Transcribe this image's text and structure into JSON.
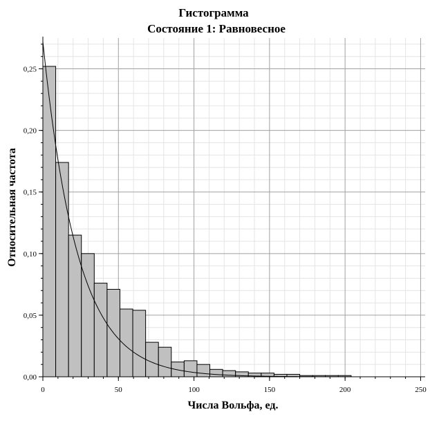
{
  "chart_data": {
    "type": "bar",
    "title": "Гистограмма",
    "subtitle": "Состояние 1: Равновесное",
    "xlabel": "Числа Вольфа, ед.",
    "ylabel": "Относительная частота",
    "xlim": [
      0,
      253
    ],
    "ylim": [
      0,
      0.275
    ],
    "x_ticks": [
      0,
      50,
      100,
      150,
      200,
      250
    ],
    "x_tick_labels": [
      "0",
      "50",
      "100",
      "150",
      "200",
      "250"
    ],
    "y_ticks": [
      0,
      0.05,
      0.1,
      0.15,
      0.2,
      0.25
    ],
    "y_tick_labels": [
      "0,00",
      "0,05",
      "0,10",
      "0,15",
      "0,20",
      "0,25"
    ],
    "grid": true,
    "bin_width": 8.5,
    "bin_starts": [
      0,
      8.5,
      17,
      25.5,
      34,
      42.5,
      51,
      59.5,
      68,
      76.5,
      85,
      93.5,
      102,
      110.5,
      119,
      127.5,
      136,
      144.5,
      153,
      161.5,
      170,
      178.5,
      187,
      195.5
    ],
    "values": [
      0.252,
      0.174,
      0.115,
      0.1,
      0.076,
      0.071,
      0.055,
      0.054,
      0.028,
      0.024,
      0.012,
      0.013,
      0.01,
      0.006,
      0.005,
      0.004,
      0.003,
      0.003,
      0.002,
      0.002,
      0.001,
      0.001,
      0.001,
      0.001
    ],
    "fit_curve": {
      "type": "exponential",
      "a": 0.272,
      "rate": 0.0435,
      "x_range": [
        0,
        253
      ]
    },
    "colors": {
      "bar_fill": "#c0c0c0",
      "bar_stroke": "#000000",
      "major_grid": "#a0a0a0",
      "minor_grid": "#e4e4e4",
      "curve": "#000000"
    }
  }
}
